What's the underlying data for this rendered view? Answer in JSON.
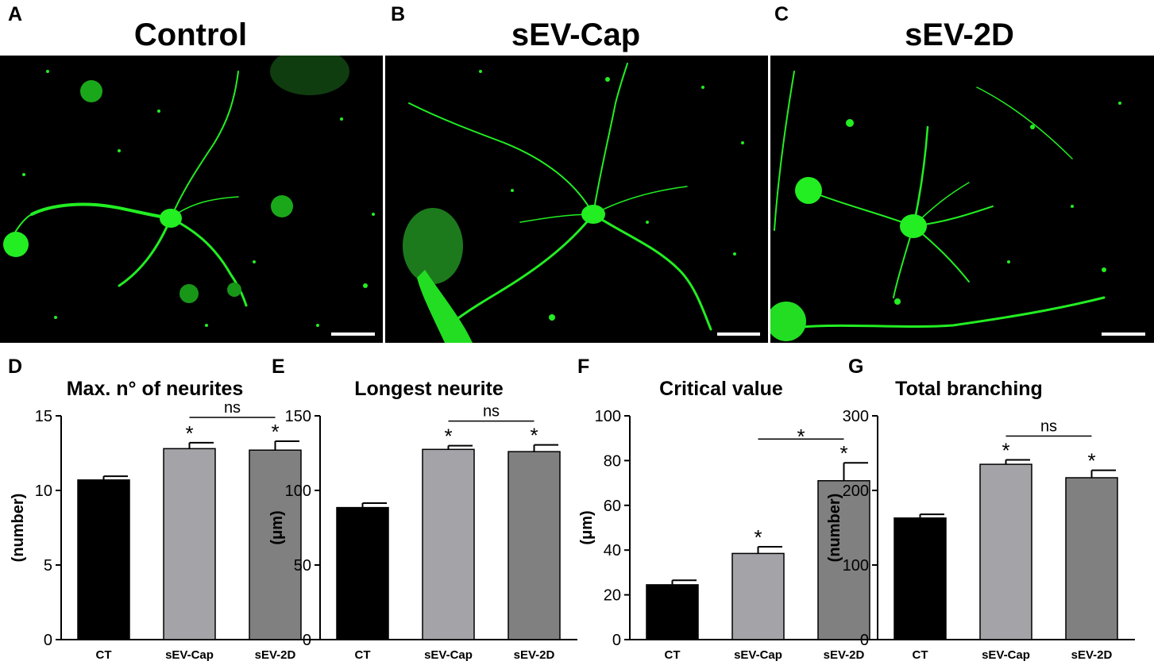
{
  "micrographs": [
    {
      "letter": "A",
      "title": "Control"
    },
    {
      "letter": "B",
      "title": "sEV-Cap"
    },
    {
      "letter": "C",
      "title": "sEV-2D"
    }
  ],
  "colors": {
    "fluorescence": "#22ee22",
    "CT": "#000000",
    "sEV-Cap": "#a3a3a8",
    "sEV-2D": "#808080"
  },
  "chart_data": [
    {
      "type": "bar",
      "letter": "D",
      "title": "Max. n° of neurites",
      "ylabel": "(number)",
      "ylim": [
        0,
        15
      ],
      "yticks": [
        0,
        5,
        10,
        15
      ],
      "categories": [
        "CT",
        "sEV-Cap",
        "sEV-2D"
      ],
      "values": [
        10.7,
        12.8,
        12.7
      ],
      "errors": [
        0.25,
        0.4,
        0.6
      ],
      "stars": [
        "",
        "*",
        "*"
      ],
      "comparisons": [
        {
          "from": 1,
          "to": 2,
          "label": "ns"
        }
      ]
    },
    {
      "type": "bar",
      "letter": "E",
      "title": "Longest neurite",
      "ylabel": "(μm)",
      "ylim": [
        0,
        150
      ],
      "yticks": [
        0,
        50,
        100,
        150
      ],
      "categories": [
        "CT",
        "sEV-Cap",
        "sEV-2D"
      ],
      "values": [
        88.5,
        127.5,
        126
      ],
      "errors": [
        3,
        2.5,
        4.5
      ],
      "stars": [
        "",
        "*",
        "*"
      ],
      "comparisons": [
        {
          "from": 1,
          "to": 2,
          "label": "ns"
        }
      ]
    },
    {
      "type": "bar",
      "letter": "F",
      "title": "Critical value",
      "ylabel": "(μm)",
      "ylim": [
        0,
        100
      ],
      "yticks": [
        0,
        20,
        40,
        60,
        80,
        100
      ],
      "categories": [
        "CT",
        "sEV-Cap",
        "sEV-2D"
      ],
      "values": [
        24.5,
        38.5,
        71
      ],
      "errors": [
        2,
        3,
        8
      ],
      "stars": [
        "",
        "*",
        "*"
      ],
      "comparisons": [
        {
          "from": 1,
          "to": 2,
          "label": "*"
        }
      ]
    },
    {
      "type": "bar",
      "letter": "G",
      "title": "Total branching",
      "ylabel": "(number)",
      "ylim": [
        0,
        300
      ],
      "yticks": [
        0,
        100,
        200,
        300
      ],
      "categories": [
        "CT",
        "sEV-Cap",
        "sEV-2D"
      ],
      "values": [
        163,
        235,
        217
      ],
      "errors": [
        5,
        6,
        10
      ],
      "stars": [
        "",
        "*",
        "*"
      ],
      "comparisons": [
        {
          "from": 1,
          "to": 2,
          "label": "ns"
        }
      ]
    }
  ]
}
